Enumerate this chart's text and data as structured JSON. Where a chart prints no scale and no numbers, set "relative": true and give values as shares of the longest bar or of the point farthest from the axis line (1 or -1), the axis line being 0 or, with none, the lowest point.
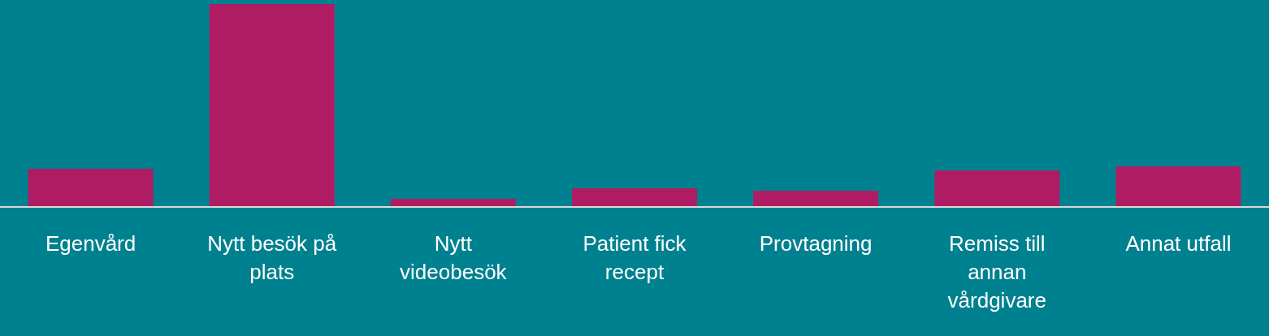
{
  "chart_data": {
    "type": "bar",
    "relative": true,
    "categories": [
      "Egenvård",
      "Nytt besök på plats",
      "Nytt videobesök",
      "Patient fick recept",
      "Provtagning",
      "Remiss till annan vårdgivare",
      "Annat utfall"
    ],
    "values": [
      0.188,
      1,
      0.04,
      0.092,
      0.08,
      0.18,
      0.2
    ],
    "color": "#b01c64",
    "grid": false,
    "legend": false
  }
}
